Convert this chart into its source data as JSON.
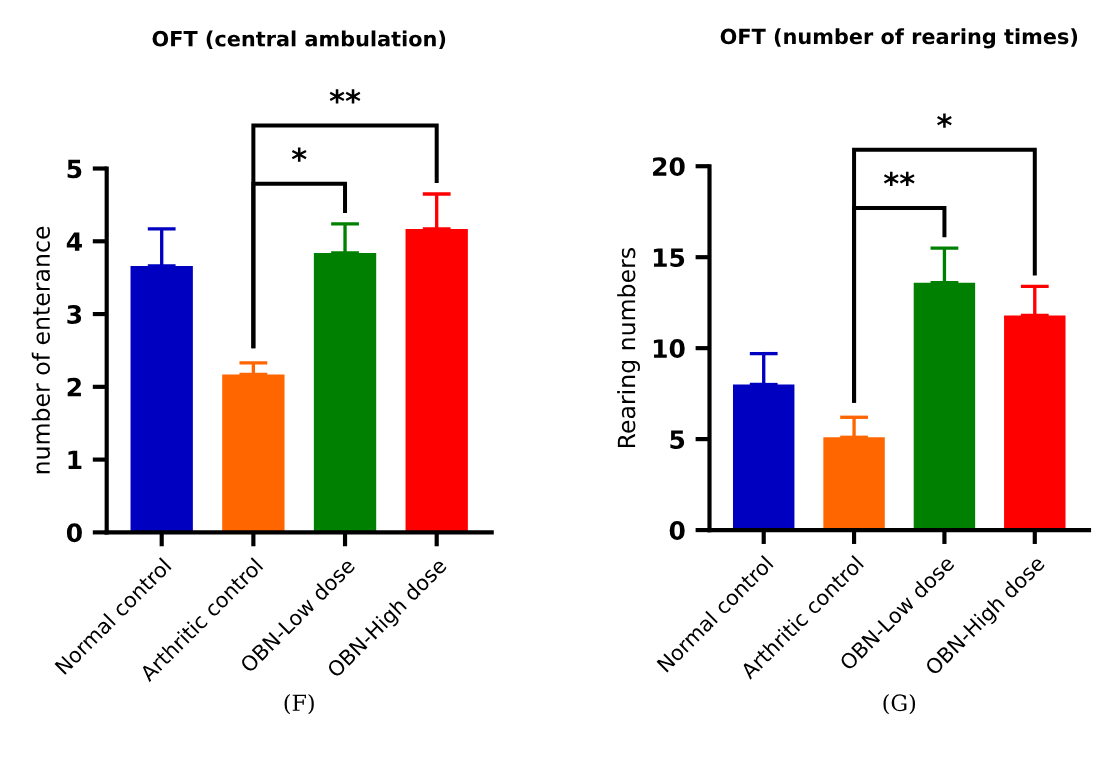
{
  "chart_data": [
    {
      "type": "bar",
      "title": "OFT (central ambulation)",
      "ylabel": "number of enterance",
      "categories": [
        "Normal control",
        "Arthritic control",
        "OBN-Low dose",
        "OBN-High dose"
      ],
      "values": [
        3.66,
        2.17,
        3.84,
        4.17
      ],
      "colors": [
        "#0000c0",
        "#ff6600",
        "#008000",
        "#ff0000"
      ],
      "errors": [
        [
          3.66,
          4.17
        ],
        [
          2.17,
          2.33
        ],
        [
          3.84,
          4.24
        ],
        [
          4.17,
          4.65
        ]
      ],
      "ylim": [
        0,
        5
      ],
      "yticks": [
        0,
        1,
        2,
        3,
        4,
        5
      ],
      "grid": false,
      "legend": false,
      "annotations": [
        "*",
        "**",
        "(F)"
      ]
    },
    {
      "type": "bar",
      "title": "OFT (number of rearing times)",
      "ylabel": "Rearing numbers",
      "categories": [
        "Normal control",
        "Arthritic control",
        "OBN-Low dose",
        "OBN-High dose"
      ],
      "values": [
        8.0,
        5.1,
        13.6,
        11.8
      ],
      "colors": [
        "#0000c0",
        "#ff6600",
        "#008000",
        "#ff0000"
      ],
      "errors": [
        [
          8.0,
          9.7
        ],
        [
          5.1,
          6.2
        ],
        [
          13.6,
          15.5
        ],
        [
          11.8,
          13.4
        ]
      ],
      "ylim": [
        0,
        20
      ],
      "yticks": [
        0,
        5,
        10,
        15,
        20
      ],
      "grid": false,
      "legend": false,
      "annotations": [
        "**",
        "*",
        "(G)"
      ]
    }
  ]
}
